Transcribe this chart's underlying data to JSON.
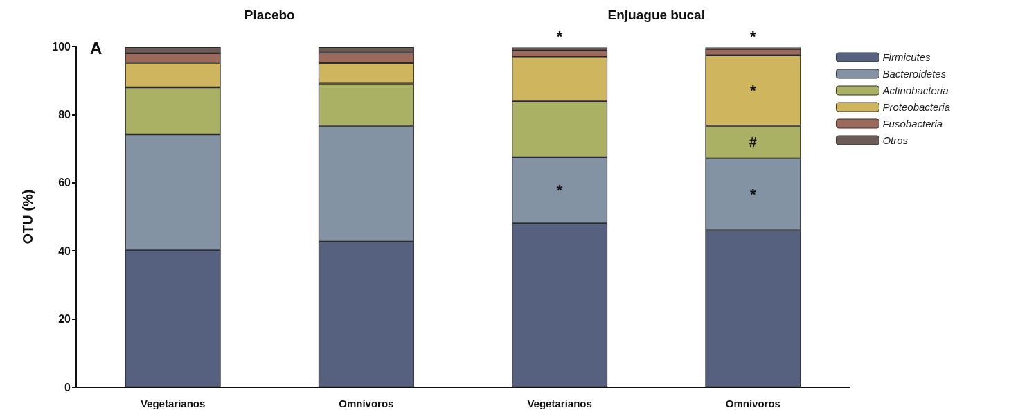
{
  "chart_data": {
    "type": "bar",
    "stacked": true,
    "ylabel": "OTU (%)",
    "categories": [
      "Vegetarianos",
      "Omnívoros",
      "Vegetarianos",
      "Omnívoros"
    ],
    "ylim": [
      0,
      100
    ],
    "yticks": [
      0,
      20,
      40,
      60,
      80,
      100
    ],
    "grid": false,
    "legend": "top right",
    "annotations": [
      "A",
      "Placebo",
      "Enjuague bucal"
    ],
    "series": [
      {
        "name": "Firmicutes",
        "color": "#56617f",
        "values": [
          40.3,
          42.7,
          48.2,
          46.0
        ]
      },
      {
        "name": "Bacteroidetes",
        "color": "#8393a3",
        "values": [
          33.9,
          34.0,
          19.3,
          21.1
        ],
        "value_labels": [
          null,
          null,
          "*",
          "*"
        ]
      },
      {
        "name": "Actinobacteria",
        "color": "#aab164",
        "values": [
          13.8,
          12.4,
          16.5,
          9.6
        ],
        "value_labels": [
          null,
          null,
          null,
          "#"
        ]
      },
      {
        "name": "Proteobacteria",
        "color": "#cfb65e",
        "values": [
          7.2,
          6.0,
          12.9,
          20.7
        ],
        "value_labels": [
          null,
          null,
          null,
          "*"
        ]
      },
      {
        "name": "Fusobacteria",
        "color": "#9b6a5c",
        "values": [
          2.8,
          3.1,
          1.9,
          1.9
        ]
      },
      {
        "name": "Otros",
        "color": "#6b5a55",
        "values": [
          1.8,
          1.6,
          0.9,
          0.4
        ],
        "value_labels": [
          null,
          null,
          "*",
          "*"
        ]
      }
    ]
  }
}
